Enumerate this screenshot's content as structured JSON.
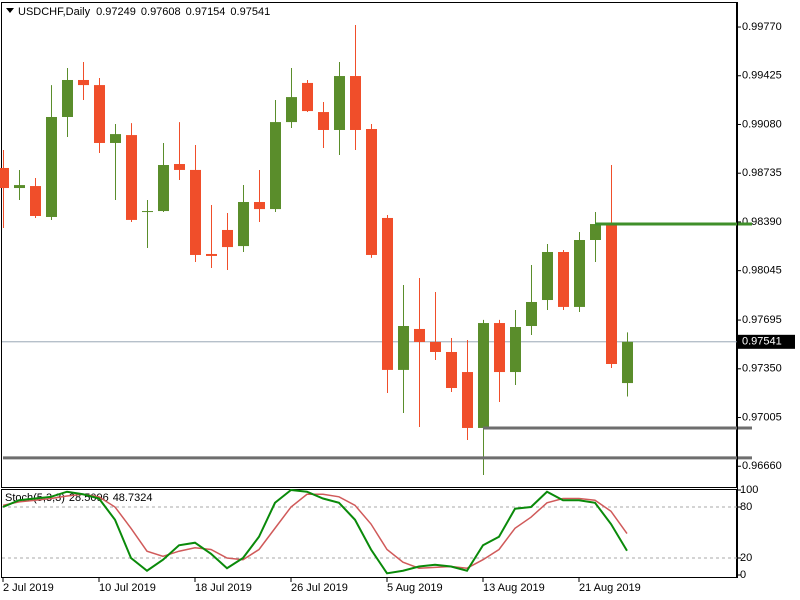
{
  "chart_data": [
    {
      "type": "candlestick",
      "title": "USDCHF,Daily",
      "categories": [
        "2 Jul 2019",
        null,
        null,
        null,
        null,
        null,
        "10 Jul 2019",
        null,
        null,
        null,
        null,
        null,
        "18 Jul 2019",
        null,
        null,
        null,
        null,
        null,
        "26 Jul 2019",
        null,
        null,
        null,
        null,
        null,
        "5 Aug 2019",
        null,
        null,
        null,
        null,
        null,
        "13 Aug 2019",
        null,
        null,
        null,
        null,
        null,
        "21 Aug 2019",
        null,
        null,
        null
      ],
      "open": [
        0.98772,
        0.9863,
        0.98644,
        0.98425,
        0.99133,
        0.99395,
        0.99359,
        0.98949,
        0.99005,
        0.9846,
        0.98467,
        0.988,
        0.98758,
        0.98163,
        0.98333,
        0.98219,
        0.98531,
        0.98481,
        0.99097,
        0.99374,
        0.99168,
        0.99041,
        0.99423,
        0.99048,
        0.98418,
        0.97342,
        0.97632,
        0.9754,
        0.97469,
        0.97327,
        0.96931,
        0.97674,
        0.97327,
        0.97653,
        0.97837,
        0.98177,
        0.97788,
        0.98262,
        0.98375,
        0.97249
      ],
      "high": [
        0.98899,
        0.98758,
        0.98701,
        0.99359,
        0.9948,
        0.99522,
        0.99409,
        0.99083,
        0.9909,
        0.98545,
        0.98949,
        0.99097,
        0.98935,
        0.9851,
        0.98453,
        0.98651,
        0.98758,
        0.99253,
        0.9948,
        0.99395,
        0.99239,
        0.99522,
        0.99784,
        0.99083,
        0.98439,
        0.97943,
        0.97993,
        0.97894,
        0.97568,
        0.97554,
        0.97696,
        0.97696,
        0.97766,
        0.98085,
        0.98234,
        0.98191,
        0.98319,
        0.9846,
        0.98793,
        0.97608
      ],
      "low": [
        0.98347,
        0.98545,
        0.98418,
        0.98404,
        0.98991,
        0.99253,
        0.98878,
        0.98545,
        0.98389,
        0.98205,
        0.9846,
        0.98687,
        0.98106,
        0.98064,
        0.9805,
        0.98177,
        0.98389,
        0.9846,
        0.99055,
        0.99168,
        0.98913,
        0.98864,
        0.98899,
        0.98135,
        0.97179,
        0.97037,
        0.96938,
        0.97412,
        0.97186,
        0.96846,
        0.96598,
        0.97115,
        0.97235,
        0.97589,
        0.97766,
        0.97766,
        0.97752,
        0.98106,
        0.97356,
        0.97154
      ],
      "close": [
        0.9863,
        0.98651,
        0.98432,
        0.99133,
        0.99395,
        0.99359,
        0.98949,
        0.99012,
        0.98404,
        0.98467,
        0.98793,
        0.98758,
        0.98156,
        0.98149,
        0.98212,
        0.98531,
        0.98481,
        0.99097,
        0.99274,
        0.99175,
        0.99041,
        0.99423,
        0.99041,
        0.98156,
        0.97342,
        0.97653,
        0.9754,
        0.97469,
        0.97214,
        0.96931,
        0.97674,
        0.97327,
        0.97646,
        0.97823,
        0.98177,
        0.97788,
        0.98262,
        0.98375,
        0.97384,
        0.97541
      ],
      "up_color": "#5a8d2b",
      "down_color": "#f04e2a",
      "ylim": [
        0.99926,
        0.96513
      ],
      "yticks": [
        {
          "value": 0.9977,
          "label": "0.99770"
        },
        {
          "value": 0.99425,
          "label": "0.99425"
        },
        {
          "value": 0.9908,
          "label": "0.99080"
        },
        {
          "value": 0.98735,
          "label": "0.98735"
        },
        {
          "value": 0.9839,
          "label": "0.98390"
        },
        {
          "value": 0.98045,
          "label": "0.98045"
        },
        {
          "value": 0.97695,
          "label": "0.97695"
        },
        {
          "value": 0.9735,
          "label": "0.97350"
        },
        {
          "value": 0.97005,
          "label": "0.97005"
        },
        {
          "value": 0.9666,
          "label": "0.96660"
        }
      ],
      "hlines": [
        {
          "value": 0.98375,
          "color": "#3f8f2a",
          "start": 37
        },
        {
          "value": 0.96931,
          "color": "#6e6e6e",
          "start": 30
        },
        {
          "value": 0.96719,
          "color": "#6e6e6e",
          "start": 0
        }
      ]
    },
    {
      "type": "line",
      "title": "Stoch(5,3,3)",
      "series": [
        {
          "color": "#0a8a0a",
          "values": [
            80,
            88,
            90,
            92,
            98,
            95,
            90,
            65,
            20,
            5,
            18,
            35,
            38,
            25,
            8,
            20,
            45,
            85,
            100,
            98,
            90,
            85,
            65,
            30,
            2,
            5,
            10,
            12,
            10,
            5,
            35,
            45,
            78,
            80,
            98,
            88,
            88,
            85,
            60,
            28.5096
          ]
        },
        {
          "color": "#d05a5a",
          "values": [
            82,
            86,
            88,
            90,
            93,
            95,
            92,
            80,
            55,
            28,
            22,
            28,
            32,
            30,
            20,
            18,
            30,
            55,
            80,
            95,
            95,
            92,
            82,
            60,
            30,
            15,
            8,
            9,
            10,
            8,
            18,
            30,
            55,
            68,
            85,
            90,
            90,
            88,
            75,
            48.7324
          ]
        }
      ],
      "ylim": [
        -2.35,
        101.2
      ],
      "yticks": [
        100,
        80,
        20,
        0
      ],
      "levels": [
        80,
        20
      ]
    }
  ]
}
